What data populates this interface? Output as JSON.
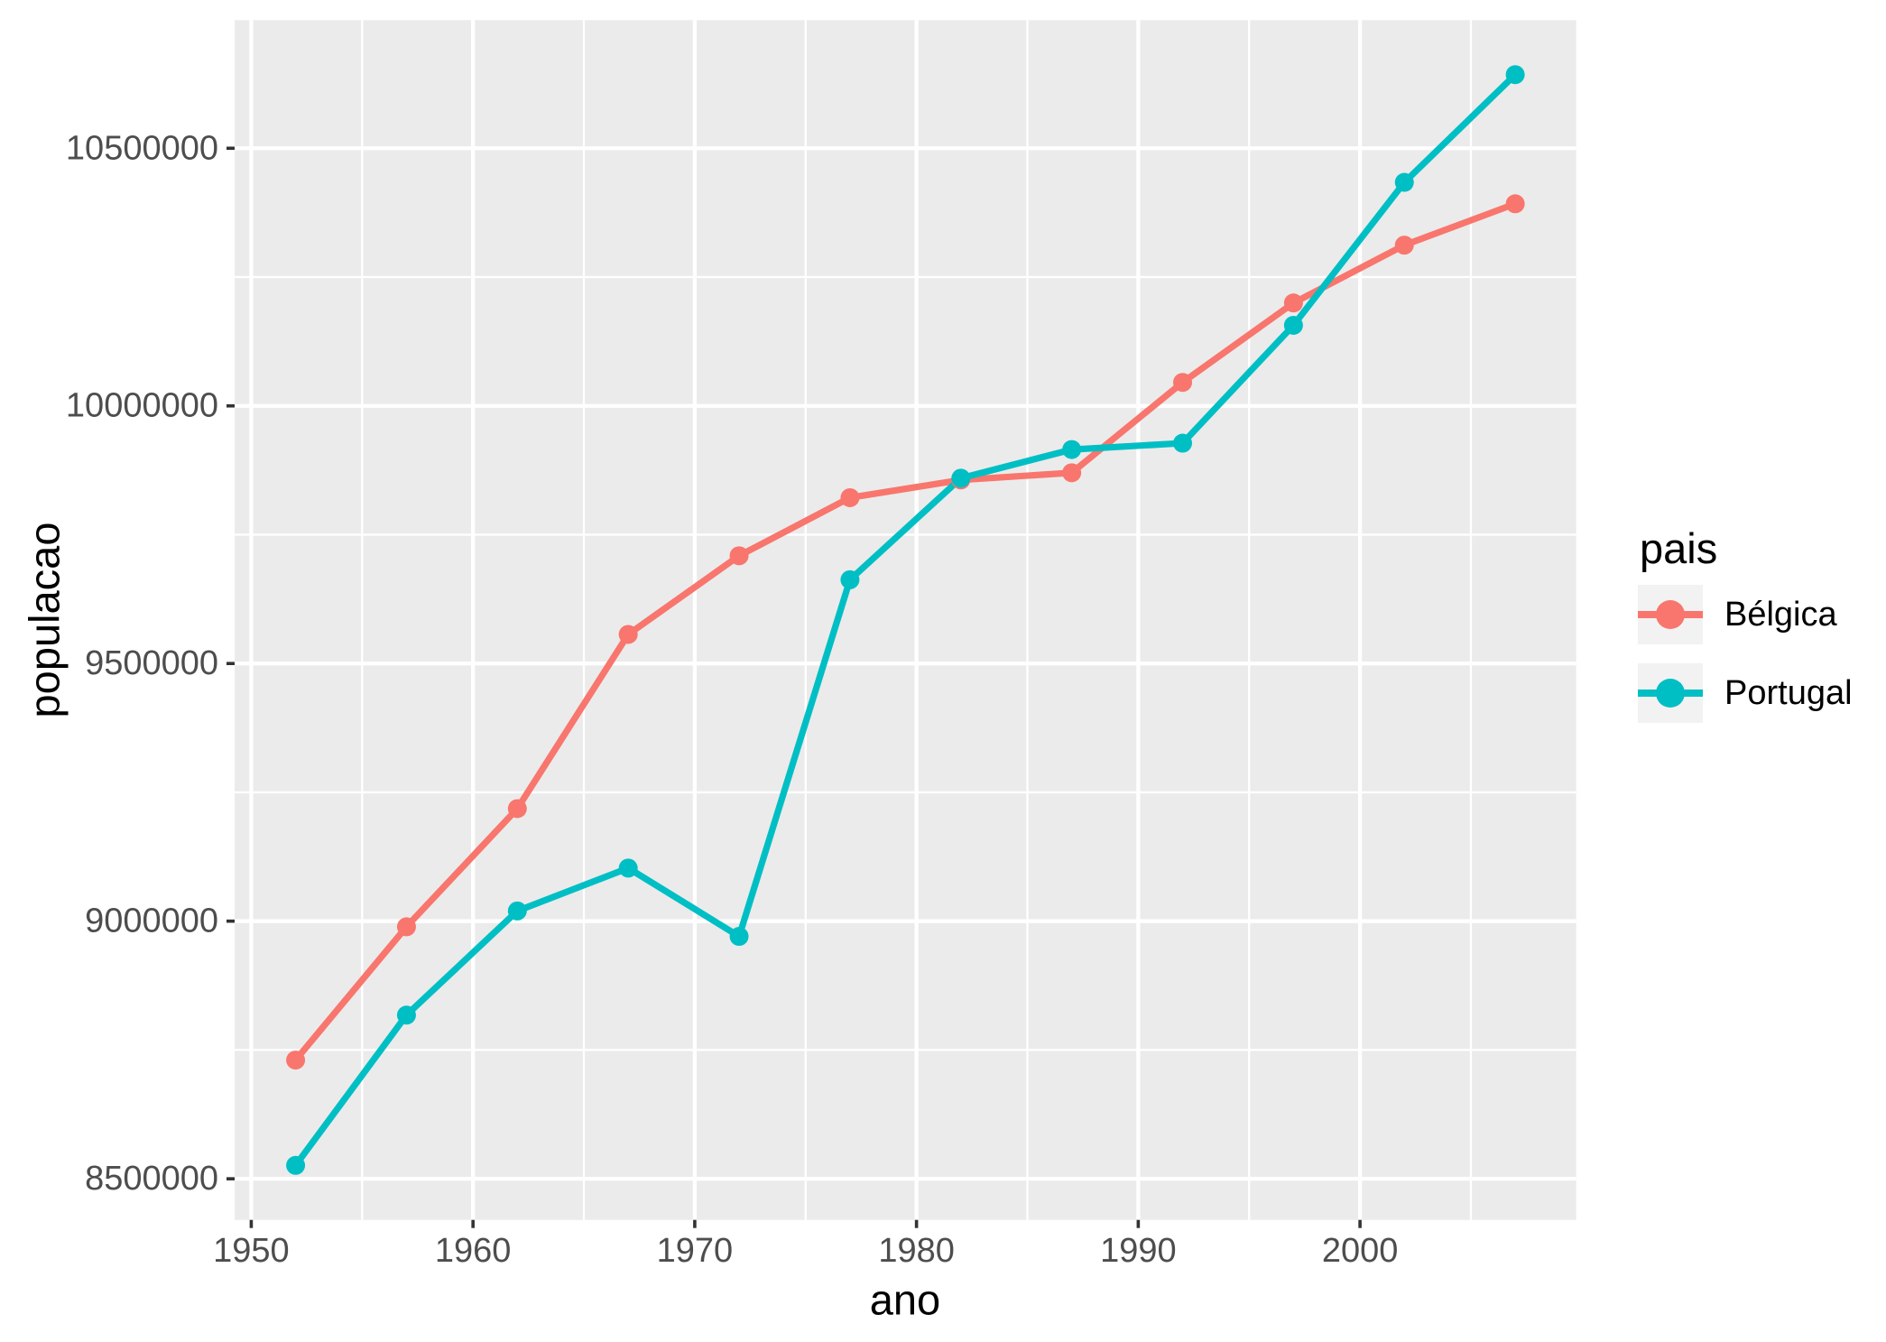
{
  "chart_data": {
    "type": "line",
    "title": "",
    "xlabel": "ano",
    "ylabel": "populacao",
    "legend_title": "pais",
    "legend_position": "right",
    "grid": true,
    "marker": "circle",
    "x": [
      1952,
      1957,
      1962,
      1967,
      1972,
      1977,
      1982,
      1987,
      1992,
      1997,
      2002,
      2007
    ],
    "series": [
      {
        "name": "Bélgica",
        "color": "#F8766D",
        "values": [
          8730405,
          8989111,
          9218400,
          9556500,
          9709100,
          9821800,
          9856303,
          9870200,
          10045622,
          10199787,
          10311970,
          10392226
        ]
      },
      {
        "name": "Portugal",
        "color": "#00BFC4",
        "values": [
          8526050,
          8817650,
          9019800,
          9103000,
          8970450,
          9662600,
          9859650,
          9915289,
          9927680,
          10156415,
          10433867,
          10642836
        ]
      }
    ],
    "xlim": [
      1949.25,
      2009.75
    ],
    "ylim": [
      8420211,
      10748675
    ],
    "x_ticks": [
      1950,
      1960,
      1970,
      1980,
      1990,
      2000
    ],
    "x_tick_labels": [
      "1950",
      "1960",
      "1970",
      "1980",
      "1990",
      "2000"
    ],
    "x_minor_ticks": [
      1955,
      1965,
      1975,
      1985,
      1995,
      2005
    ],
    "y_ticks": [
      8500000,
      9000000,
      9500000,
      10000000,
      10500000
    ],
    "y_tick_labels": [
      "8500000",
      "9000000",
      "9500000",
      "10000000",
      "10500000"
    ],
    "y_minor_ticks": [
      8750000,
      9250000,
      9750000,
      10250000
    ],
    "colors": {
      "panel_bg": "#EBEBEB",
      "grid": "#FFFFFF",
      "axis_text": "#4D4D4D",
      "axis_title": "#000000",
      "tick_mark": "#333333",
      "legend_key_bg": "#F2F2F2"
    }
  }
}
